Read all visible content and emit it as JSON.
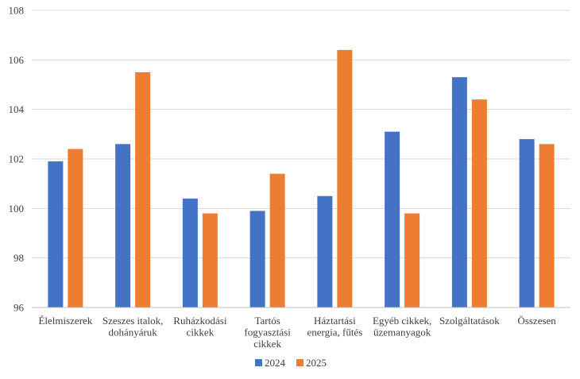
{
  "chart_data": {
    "type": "bar",
    "categories": [
      [
        "Élelmiszerek"
      ],
      [
        "Szeszes italok,",
        "dohányáruk"
      ],
      [
        "Ruházkodási",
        "cikkek"
      ],
      [
        "Tartós",
        "fogyasztási",
        "cikkek"
      ],
      [
        "Háztartási",
        "energia, fűtés"
      ],
      [
        "Egyéb cikkek,",
        "üzemanyagok"
      ],
      [
        "Szolgáltatások"
      ],
      [
        "Összesen"
      ]
    ],
    "series": [
      {
        "name": "2024",
        "color": "#4472C4",
        "values": [
          101.9,
          102.6,
          100.4,
          99.9,
          100.5,
          103.1,
          105.3,
          102.8
        ]
      },
      {
        "name": "2025",
        "color": "#ED7D31",
        "values": [
          102.4,
          105.5,
          99.8,
          101.4,
          106.4,
          99.8,
          104.4,
          102.6
        ]
      }
    ],
    "yticks": [
      "96",
      "98",
      "100",
      "102",
      "104",
      "106",
      "108"
    ],
    "ylim": [
      96,
      108
    ],
    "grid": true,
    "legend": "bottom",
    "gridColor": "#d9d9d9"
  }
}
